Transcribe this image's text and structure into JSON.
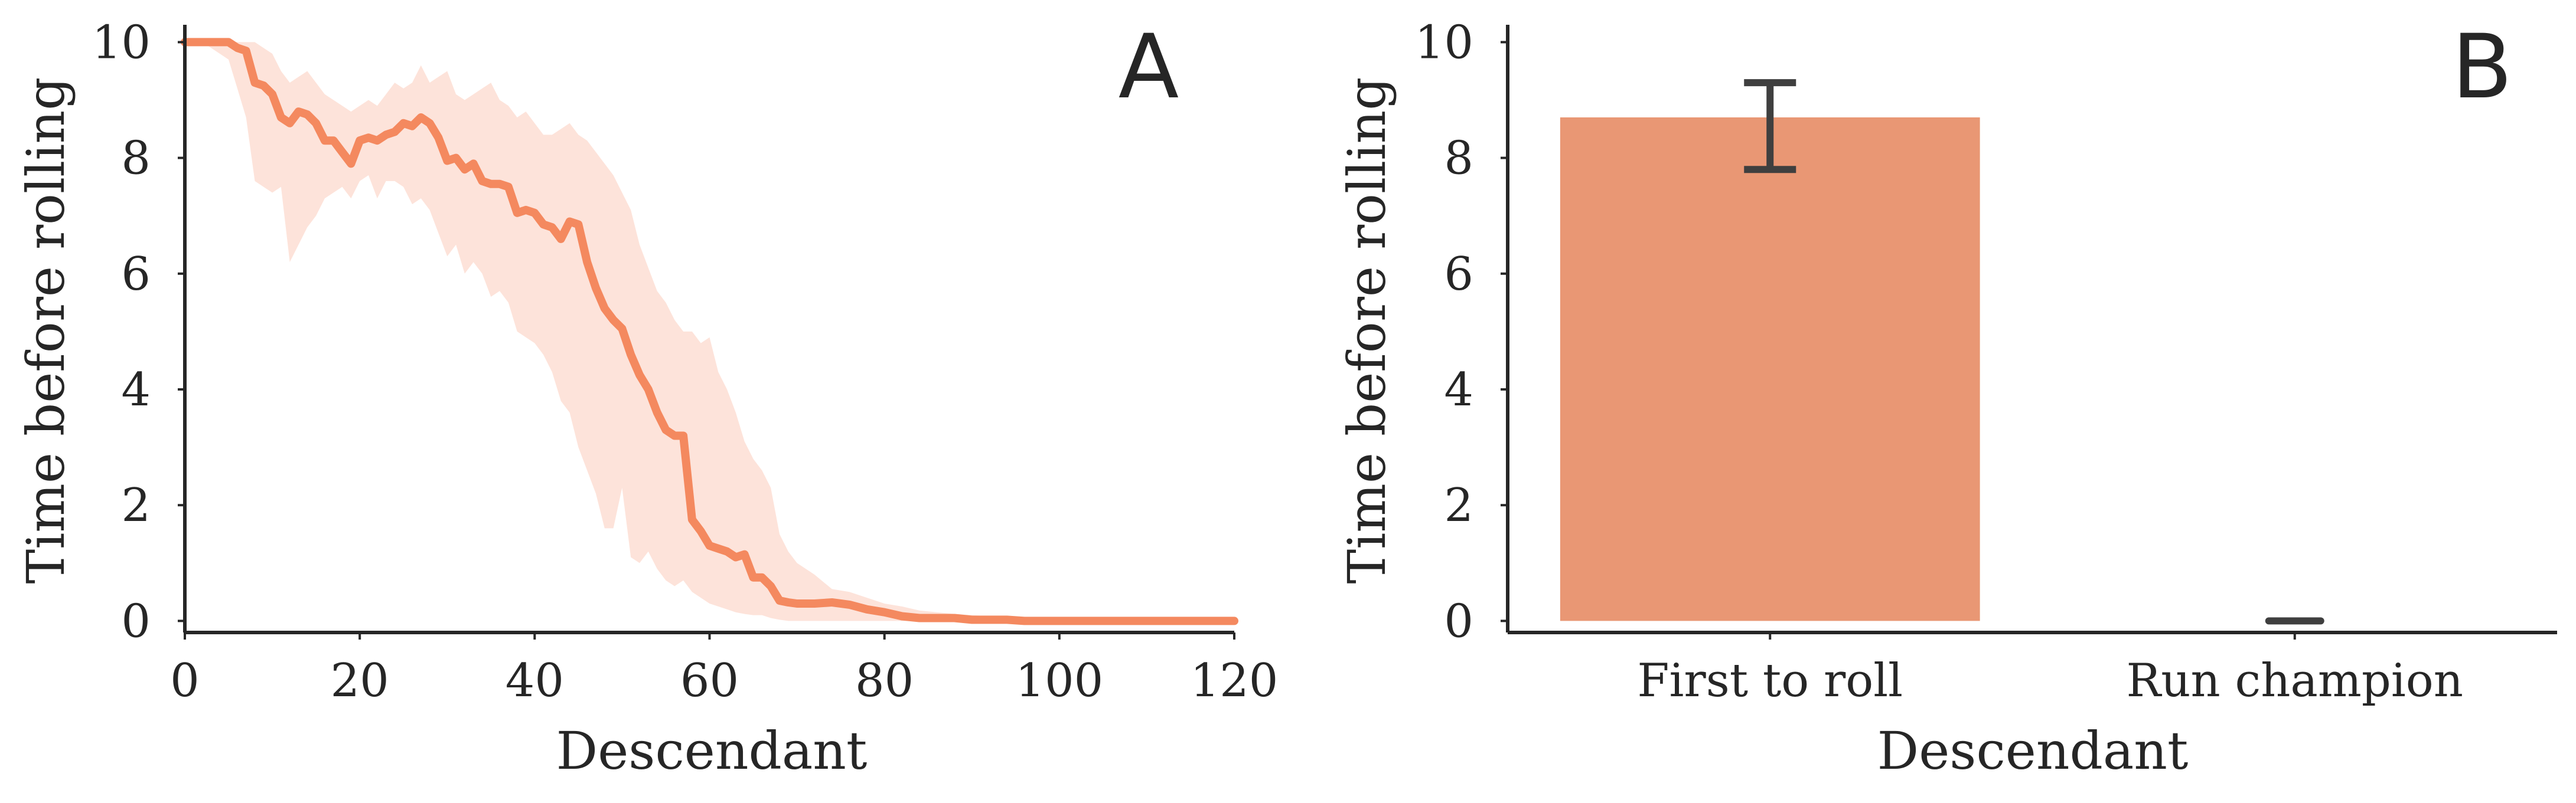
{
  "colors": {
    "line": "#f4895f",
    "band": "#fde3da",
    "bar": "#e99774",
    "errorbar": "#3f3f3f",
    "axis": "#262626"
  },
  "chart_data": [
    {
      "type": "line",
      "panel_label": "A",
      "xlabel": "Descendant",
      "ylabel": "Time before rolling",
      "xlim": [
        0,
        120
      ],
      "ylim": [
        -0.2,
        10.3
      ],
      "xticks": [
        0,
        20,
        40,
        60,
        80,
        100,
        120
      ],
      "yticks": [
        0,
        2,
        4,
        6,
        8,
        10
      ],
      "grid": false,
      "series": [
        {
          "x": [
            0,
            2,
            4,
            5,
            6,
            7,
            8,
            9,
            10,
            11,
            12,
            13,
            14,
            15,
            16,
            17,
            18,
            19,
            20,
            21,
            22,
            23,
            24,
            25,
            26,
            27,
            28,
            29,
            30,
            31,
            32,
            33,
            34,
            35,
            36,
            37,
            38,
            39,
            40,
            41,
            42,
            43,
            44,
            45,
            46,
            47,
            48,
            49,
            50,
            51,
            52,
            53,
            54,
            55,
            56,
            57,
            58,
            59,
            60,
            61,
            62,
            63,
            64,
            65,
            66,
            67,
            68,
            69,
            70,
            72,
            74,
            76,
            78,
            80,
            82,
            84,
            86,
            88,
            90,
            92,
            94,
            96,
            98,
            100,
            105,
            110,
            115,
            120
          ],
          "y": [
            10.0,
            10.0,
            10.0,
            10.0,
            9.9,
            9.85,
            9.3,
            9.25,
            9.1,
            8.7,
            8.6,
            8.8,
            8.75,
            8.6,
            8.3,
            8.3,
            8.1,
            7.9,
            8.3,
            8.35,
            8.3,
            8.4,
            8.45,
            8.6,
            8.55,
            8.7,
            8.6,
            8.35,
            7.95,
            8.0,
            7.8,
            7.9,
            7.6,
            7.55,
            7.55,
            7.5,
            7.05,
            7.1,
            7.05,
            6.85,
            6.8,
            6.6,
            6.9,
            6.85,
            6.2,
            5.75,
            5.4,
            5.2,
            5.05,
            4.6,
            4.25,
            4.0,
            3.6,
            3.3,
            3.2,
            3.2,
            1.75,
            1.55,
            1.3,
            1.25,
            1.2,
            1.1,
            1.15,
            0.75,
            0.75,
            0.6,
            0.35,
            0.32,
            0.3,
            0.3,
            0.32,
            0.28,
            0.2,
            0.15,
            0.08,
            0.05,
            0.05,
            0.05,
            0.02,
            0.02,
            0.02,
            0.0,
            0.0,
            0.0,
            0.0,
            0.0,
            0.0,
            0.0
          ],
          "lower": [
            10.0,
            10.0,
            9.8,
            9.7,
            9.2,
            8.7,
            7.6,
            7.5,
            7.4,
            7.5,
            6.2,
            6.5,
            6.8,
            7.0,
            7.3,
            7.4,
            7.5,
            7.3,
            7.6,
            7.7,
            7.3,
            7.6,
            7.6,
            7.5,
            7.2,
            7.3,
            7.1,
            6.7,
            6.3,
            6.5,
            6.0,
            6.2,
            6.0,
            5.6,
            5.7,
            5.5,
            5.0,
            4.9,
            4.8,
            4.6,
            4.3,
            3.8,
            3.6,
            3.0,
            2.6,
            2.2,
            1.6,
            1.6,
            2.3,
            1.1,
            1.0,
            1.2,
            0.9,
            0.7,
            0.6,
            0.7,
            0.5,
            0.4,
            0.3,
            0.25,
            0.2,
            0.15,
            0.12,
            0.1,
            0.1,
            0.05,
            0.02,
            0.0,
            0.0,
            0.0,
            0.0,
            0.0,
            0.0,
            0.0,
            0.0,
            0.0,
            0.0,
            0.0,
            0.0,
            0.0,
            0.0,
            0.0,
            0.0,
            0.0,
            0.0,
            0.0,
            0.0,
            0.0
          ],
          "upper": [
            10.0,
            10.0,
            10.0,
            10.0,
            10.0,
            10.0,
            10.0,
            9.9,
            9.8,
            9.5,
            9.3,
            9.4,
            9.5,
            9.3,
            9.1,
            9.0,
            8.9,
            8.8,
            8.9,
            9.0,
            8.9,
            9.1,
            9.3,
            9.2,
            9.3,
            9.6,
            9.3,
            9.4,
            9.5,
            9.1,
            9.0,
            9.1,
            9.2,
            9.3,
            9.0,
            8.9,
            8.7,
            8.8,
            8.6,
            8.4,
            8.4,
            8.5,
            8.6,
            8.4,
            8.3,
            8.1,
            7.9,
            7.7,
            7.4,
            7.1,
            6.5,
            6.1,
            5.7,
            5.5,
            5.2,
            5.0,
            5.0,
            4.8,
            4.9,
            4.3,
            4.0,
            3.6,
            3.1,
            2.8,
            2.6,
            2.3,
            1.5,
            1.2,
            1.0,
            0.8,
            0.55,
            0.5,
            0.4,
            0.3,
            0.25,
            0.18,
            0.15,
            0.12,
            0.1,
            0.08,
            0.06,
            0.05,
            0.04,
            0.03,
            0.02,
            0.02,
            0.02,
            0.02
          ]
        }
      ]
    },
    {
      "type": "bar",
      "panel_label": "B",
      "xlabel": "Descendant",
      "ylabel": "Time before rolling",
      "ylim": [
        -0.2,
        10.3
      ],
      "yticks": [
        0,
        2,
        4,
        6,
        8,
        10
      ],
      "grid": false,
      "categories": [
        "First to roll",
        "Run champion"
      ],
      "values": [
        8.7,
        0.0
      ],
      "error_low": [
        7.8,
        0.0
      ],
      "error_high": [
        9.3,
        0.0
      ]
    }
  ]
}
